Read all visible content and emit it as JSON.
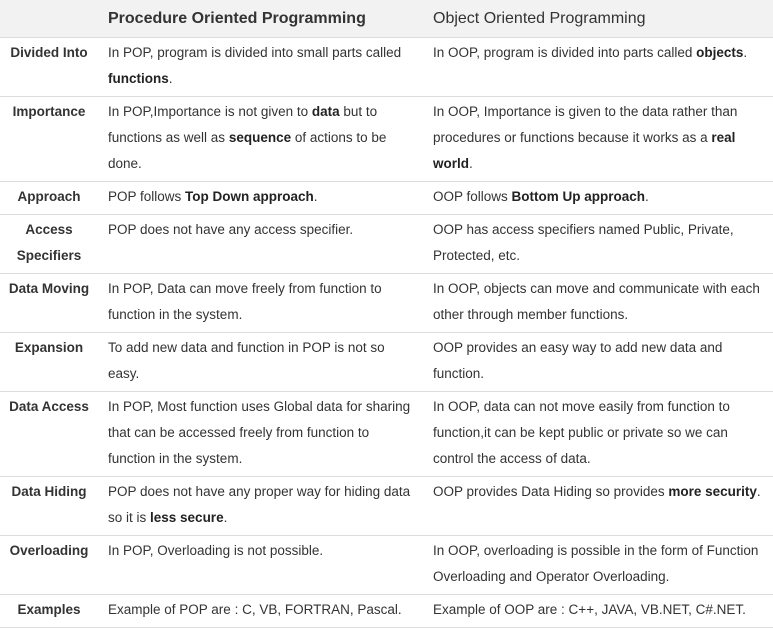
{
  "header": {
    "corner": "",
    "pop": "Procedure Oriented Programming",
    "oop": "Object Oriented Programming"
  },
  "rows": [
    {
      "label": "Divided Into",
      "pop": [
        {
          "t": "In POP, program is divided into small parts called "
        },
        {
          "t": "functions",
          "b": true
        },
        {
          "t": "."
        }
      ],
      "oop": [
        {
          "t": "In OOP, program is divided into parts called "
        },
        {
          "t": "objects",
          "b": true
        },
        {
          "t": "."
        }
      ]
    },
    {
      "label": "Importance",
      "pop": [
        {
          "t": "In POP,Importance is not given to "
        },
        {
          "t": "data",
          "b": true
        },
        {
          "t": " but to functions as well as "
        },
        {
          "t": "sequence",
          "b": true
        },
        {
          "t": " of actions to be done."
        }
      ],
      "oop": [
        {
          "t": "In OOP, Importance is given to the data rather than procedures or functions because it works as a "
        },
        {
          "t": "real world",
          "b": true
        },
        {
          "t": "."
        }
      ]
    },
    {
      "label": "Approach",
      "pop": [
        {
          "t": "POP follows "
        },
        {
          "t": "Top Down approach",
          "b": true
        },
        {
          "t": "."
        }
      ],
      "oop": [
        {
          "t": "OOP follows "
        },
        {
          "t": "Bottom Up approach",
          "b": true
        },
        {
          "t": "."
        }
      ]
    },
    {
      "label": "Access Specifiers",
      "pop": [
        {
          "t": "POP does not have any access specifier."
        }
      ],
      "oop": [
        {
          "t": "OOP has access specifiers named Public, Private, Protected, etc."
        }
      ]
    },
    {
      "label": "Data Moving",
      "pop": [
        {
          "t": "In POP, Data can move freely from function to function in the system."
        }
      ],
      "oop": [
        {
          "t": "In OOP, objects can move and communicate with each other through member functions."
        }
      ]
    },
    {
      "label": "Expansion",
      "pop": [
        {
          "t": "To add new data and function in POP is not so easy."
        }
      ],
      "oop": [
        {
          "t": "OOP provides an easy way to add new data and function."
        }
      ]
    },
    {
      "label": "Data Access",
      "pop": [
        {
          "t": "In POP, Most function uses Global data for sharing that can be accessed freely from function to function in the system."
        }
      ],
      "oop": [
        {
          "t": "In OOP, data can not move easily from function to function,it can be kept public or private so we can control the access of data."
        }
      ]
    },
    {
      "label": "Data Hiding",
      "pop": [
        {
          "t": "POP does not have any proper way for hiding data so it is "
        },
        {
          "t": "less secure",
          "b": true
        },
        {
          "t": "."
        }
      ],
      "oop": [
        {
          "t": "OOP provides Data Hiding so provides "
        },
        {
          "t": "more security",
          "b": true
        },
        {
          "t": "."
        }
      ]
    },
    {
      "label": "Overloading",
      "pop": [
        {
          "t": "In POP, Overloading is not possible."
        }
      ],
      "oop": [
        {
          "t": "In OOP, overloading is possible in the form of Function Overloading and Operator Overloading."
        }
      ]
    },
    {
      "label": "Examples",
      "pop": [
        {
          "t": "Example of POP are : C, VB, FORTRAN, Pascal."
        }
      ],
      "oop": [
        {
          "t": "Example of OOP are : C++, JAVA, VB.NET, C#.NET."
        }
      ]
    }
  ]
}
